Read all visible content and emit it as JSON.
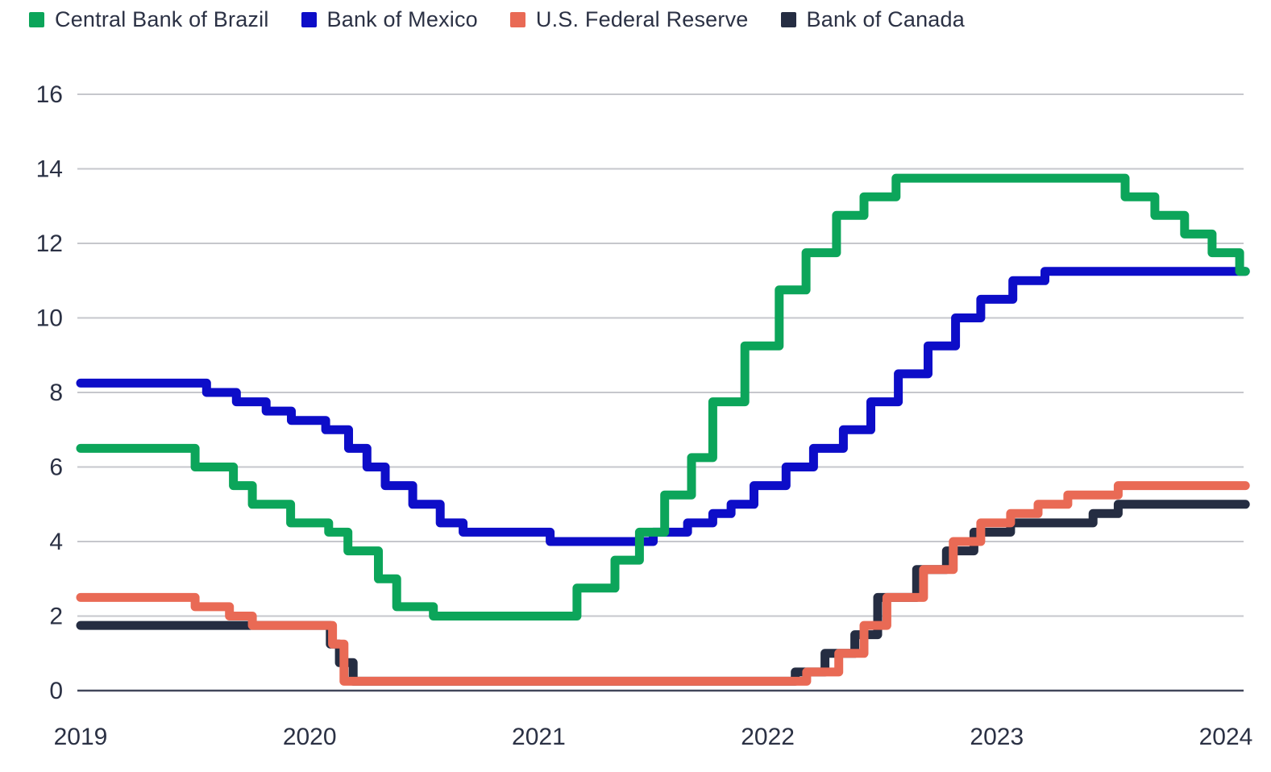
{
  "colors": {
    "background": "#ffffff",
    "text": "#2b3144",
    "grid_line": "#c6c7cc",
    "zero_line": "#41465a",
    "brazil_green": "#0ca55a",
    "mexico_blue": "#0d0dc8",
    "fed_salmon": "#e96a55",
    "canada_navy": "#252d42"
  },
  "chart_data": {
    "type": "line",
    "step": true,
    "title": "",
    "xlabel": "",
    "ylabel": "",
    "unit": "percent policy rate",
    "grid": true,
    "legend_position": "top-left",
    "x_range": [
      2019.0,
      2024.085
    ],
    "ylim": [
      0,
      16
    ],
    "x_ticks": [
      2019,
      2020,
      2021,
      2022,
      2023,
      2024
    ],
    "x_tick_labels": [
      "2019",
      "2020",
      "2021",
      "2022",
      "2023",
      "2024"
    ],
    "y_ticks": [
      0,
      2,
      4,
      6,
      8,
      10,
      12,
      14,
      16
    ],
    "y_tick_labels": [
      "0",
      "2",
      "4",
      "6",
      "8",
      "10",
      "12",
      "14",
      "16"
    ],
    "series": [
      {
        "name": "Central Bank of Brazil",
        "color": "#0ca55a",
        "points": [
          [
            2019.0,
            6.5
          ],
          [
            2019.5,
            6.0
          ],
          [
            2019.667,
            5.5
          ],
          [
            2019.75,
            5.0
          ],
          [
            2019.917,
            4.5
          ],
          [
            2020.083,
            4.25
          ],
          [
            2020.167,
            3.75
          ],
          [
            2020.3,
            3.0
          ],
          [
            2020.38,
            2.25
          ],
          [
            2020.54,
            2.0
          ],
          [
            2021.167,
            2.75
          ],
          [
            2021.333,
            3.5
          ],
          [
            2021.44,
            4.25
          ],
          [
            2021.55,
            5.25
          ],
          [
            2021.667,
            6.25
          ],
          [
            2021.76,
            7.75
          ],
          [
            2021.9,
            9.25
          ],
          [
            2022.05,
            10.75
          ],
          [
            2022.167,
            11.75
          ],
          [
            2022.3,
            12.75
          ],
          [
            2022.42,
            13.25
          ],
          [
            2022.56,
            13.75
          ],
          [
            2023.56,
            13.25
          ],
          [
            2023.69,
            12.75
          ],
          [
            2023.82,
            12.25
          ],
          [
            2023.94,
            11.75
          ],
          [
            2024.06,
            11.25
          ]
        ]
      },
      {
        "name": "Bank of Mexico",
        "color": "#0d0dc8",
        "points": [
          [
            2019.0,
            8.25
          ],
          [
            2019.55,
            8.0
          ],
          [
            2019.68,
            7.75
          ],
          [
            2019.81,
            7.5
          ],
          [
            2019.92,
            7.25
          ],
          [
            2020.07,
            7.0
          ],
          [
            2020.17,
            6.5
          ],
          [
            2020.25,
            6.0
          ],
          [
            2020.33,
            5.5
          ],
          [
            2020.45,
            5.0
          ],
          [
            2020.57,
            4.5
          ],
          [
            2020.67,
            4.25
          ],
          [
            2021.05,
            4.0
          ],
          [
            2021.5,
            4.25
          ],
          [
            2021.65,
            4.5
          ],
          [
            2021.76,
            4.75
          ],
          [
            2021.84,
            5.0
          ],
          [
            2021.94,
            5.5
          ],
          [
            2022.08,
            6.0
          ],
          [
            2022.2,
            6.5
          ],
          [
            2022.33,
            7.0
          ],
          [
            2022.45,
            7.75
          ],
          [
            2022.57,
            8.5
          ],
          [
            2022.7,
            9.25
          ],
          [
            2022.82,
            10.0
          ],
          [
            2022.93,
            10.5
          ],
          [
            2023.07,
            11.0
          ],
          [
            2023.21,
            11.25
          ]
        ]
      },
      {
        "name": "U.S. Federal Reserve",
        "color": "#e96a55",
        "points": [
          [
            2019.0,
            2.5
          ],
          [
            2019.5,
            2.25
          ],
          [
            2019.65,
            2.0
          ],
          [
            2019.75,
            1.75
          ],
          [
            2020.1,
            1.25
          ],
          [
            2020.15,
            0.25
          ],
          [
            2022.17,
            0.5
          ],
          [
            2022.31,
            1.0
          ],
          [
            2022.42,
            1.75
          ],
          [
            2022.52,
            2.5
          ],
          [
            2022.68,
            3.25
          ],
          [
            2022.81,
            4.0
          ],
          [
            2022.93,
            4.5
          ],
          [
            2023.06,
            4.75
          ],
          [
            2023.18,
            5.0
          ],
          [
            2023.31,
            5.25
          ],
          [
            2023.53,
            5.5
          ]
        ]
      },
      {
        "name": "Bank of Canada",
        "color": "#252d42",
        "points": [
          [
            2019.0,
            1.75
          ],
          [
            2020.09,
            1.25
          ],
          [
            2020.13,
            0.75
          ],
          [
            2020.19,
            0.25
          ],
          [
            2022.12,
            0.5
          ],
          [
            2022.25,
            1.0
          ],
          [
            2022.38,
            1.5
          ],
          [
            2022.48,
            2.5
          ],
          [
            2022.65,
            3.25
          ],
          [
            2022.78,
            3.75
          ],
          [
            2022.9,
            4.25
          ],
          [
            2023.06,
            4.5
          ],
          [
            2023.42,
            4.75
          ],
          [
            2023.53,
            5.0
          ]
        ]
      }
    ]
  }
}
